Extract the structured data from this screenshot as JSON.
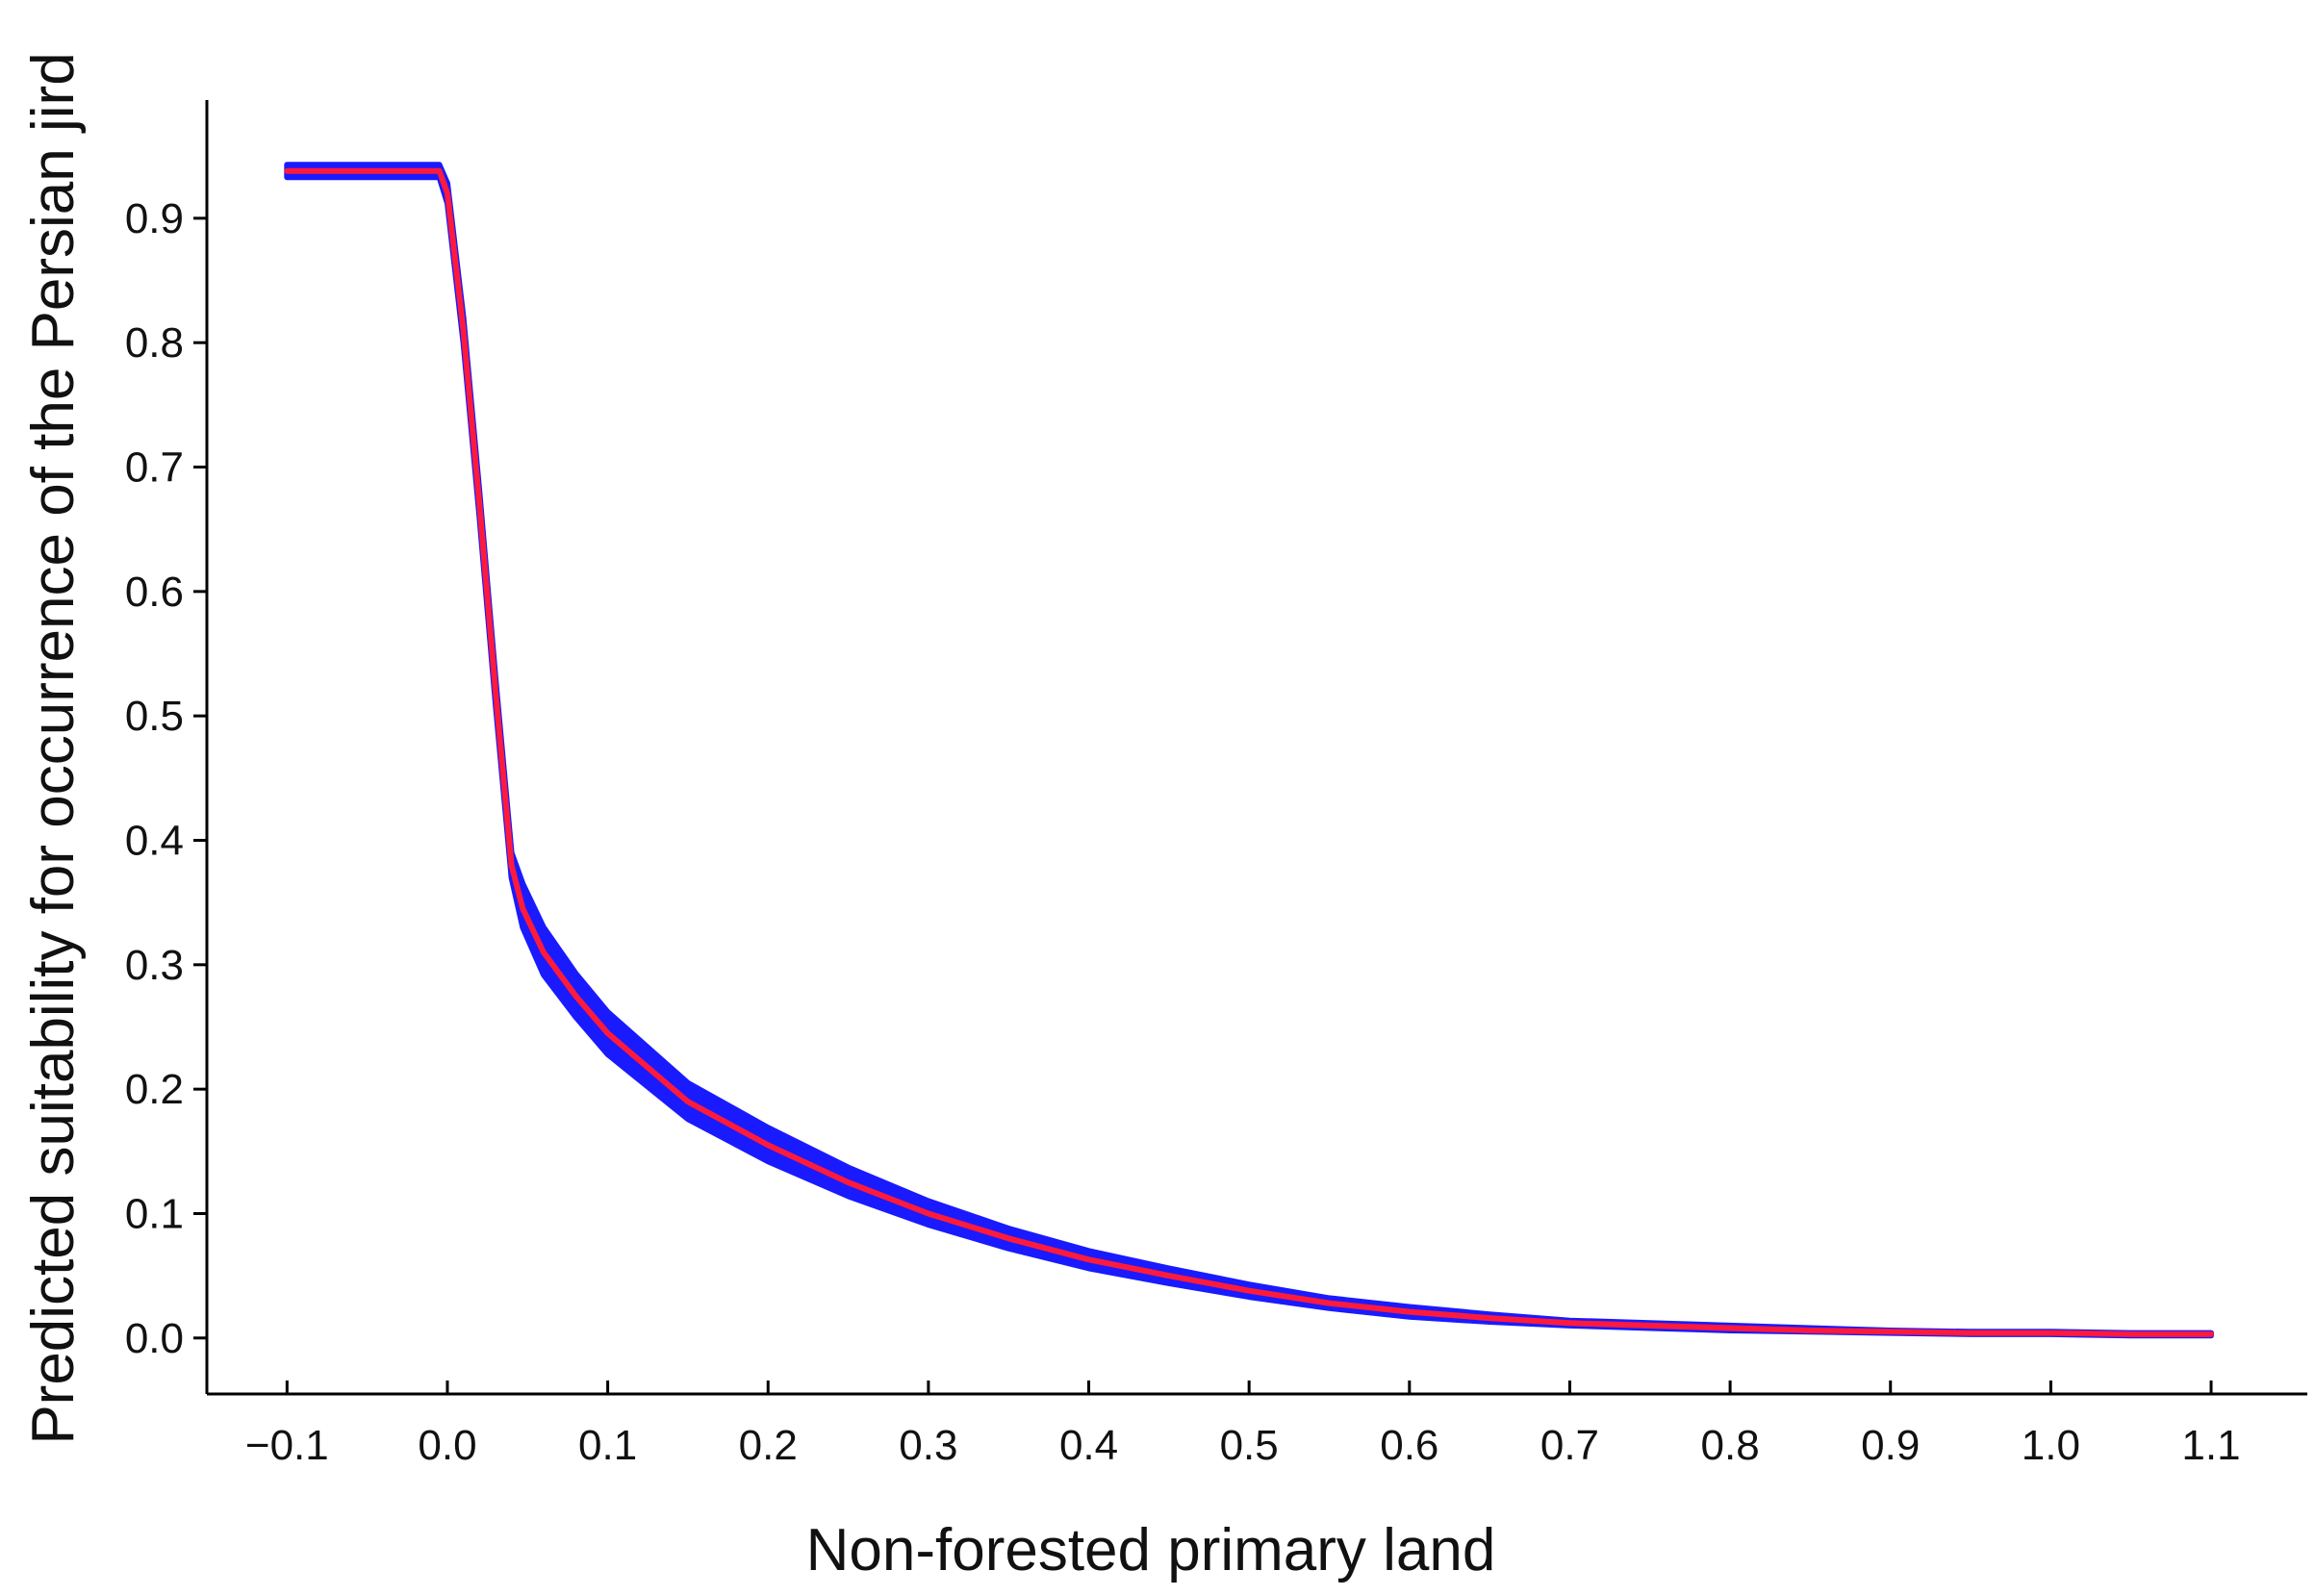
{
  "chart_data": {
    "type": "line",
    "title": "",
    "xlabel": "Non-forested primary land",
    "ylabel": "Predicted suitability for occurrence of the Persian jird",
    "xlim": [
      -0.15,
      1.16
    ],
    "ylim": [
      -0.045,
      0.995
    ],
    "x_ticks": [
      -0.1,
      0.0,
      0.1,
      0.2,
      0.3,
      0.4,
      0.5,
      0.6,
      0.7,
      0.8,
      0.9,
      1.0,
      1.1
    ],
    "x_tick_labels": [
      "−0.1",
      "0.0",
      "0.1",
      "0.2",
      "0.3",
      "0.4",
      "0.5",
      "0.6",
      "0.7",
      "0.8",
      "0.9",
      "1.0",
      "1.1"
    ],
    "y_ticks": [
      0.0,
      0.1,
      0.2,
      0.3,
      0.4,
      0.5,
      0.6,
      0.7,
      0.8,
      0.9
    ],
    "y_tick_labels": [
      "0.0",
      "0.1",
      "0.2",
      "0.3",
      "0.4",
      "0.5",
      "0.6",
      "0.7",
      "0.8",
      "0.9"
    ],
    "grid": false,
    "legend": "none",
    "series": [
      {
        "role": "mean",
        "color": "#ff1a3c",
        "x": [
          -0.1,
          -0.005,
          0.0,
          0.01,
          0.02,
          0.03,
          0.04,
          0.047,
          0.06,
          0.08,
          0.1,
          0.15,
          0.2,
          0.25,
          0.3,
          0.35,
          0.4,
          0.45,
          0.5,
          0.55,
          0.6,
          0.65,
          0.7,
          0.75,
          0.8,
          0.85,
          0.9,
          0.95,
          1.0,
          1.05,
          1.1
        ],
        "y": [
          0.938,
          0.938,
          0.92,
          0.81,
          0.67,
          0.52,
          0.38,
          0.345,
          0.31,
          0.275,
          0.245,
          0.19,
          0.155,
          0.125,
          0.1,
          0.08,
          0.063,
          0.05,
          0.038,
          0.028,
          0.021,
          0.016,
          0.012,
          0.01,
          0.008,
          0.006,
          0.005,
          0.004,
          0.004,
          0.003,
          0.003
        ]
      }
    ],
    "band": {
      "role": "confidence-band",
      "color": "#1a1aff",
      "x": [
        -0.1,
        -0.005,
        0.0,
        0.01,
        0.02,
        0.03,
        0.04,
        0.047,
        0.06,
        0.08,
        0.1,
        0.15,
        0.2,
        0.25,
        0.3,
        0.35,
        0.4,
        0.45,
        0.5,
        0.55,
        0.6,
        0.65,
        0.7,
        0.75,
        0.8,
        0.85,
        0.9,
        0.95,
        1.0,
        1.05,
        1.1
      ],
      "lower": [
        0.933,
        0.933,
        0.912,
        0.8,
        0.66,
        0.51,
        0.37,
        0.33,
        0.292,
        0.258,
        0.228,
        0.176,
        0.142,
        0.114,
        0.091,
        0.072,
        0.056,
        0.044,
        0.033,
        0.024,
        0.017,
        0.013,
        0.01,
        0.008,
        0.006,
        0.005,
        0.004,
        0.003,
        0.003,
        0.002,
        0.002
      ],
      "upper": [
        0.943,
        0.943,
        0.928,
        0.82,
        0.68,
        0.53,
        0.39,
        0.365,
        0.33,
        0.293,
        0.262,
        0.205,
        0.169,
        0.137,
        0.11,
        0.088,
        0.07,
        0.056,
        0.043,
        0.032,
        0.025,
        0.019,
        0.014,
        0.012,
        0.01,
        0.008,
        0.006,
        0.005,
        0.005,
        0.004,
        0.004
      ]
    }
  }
}
